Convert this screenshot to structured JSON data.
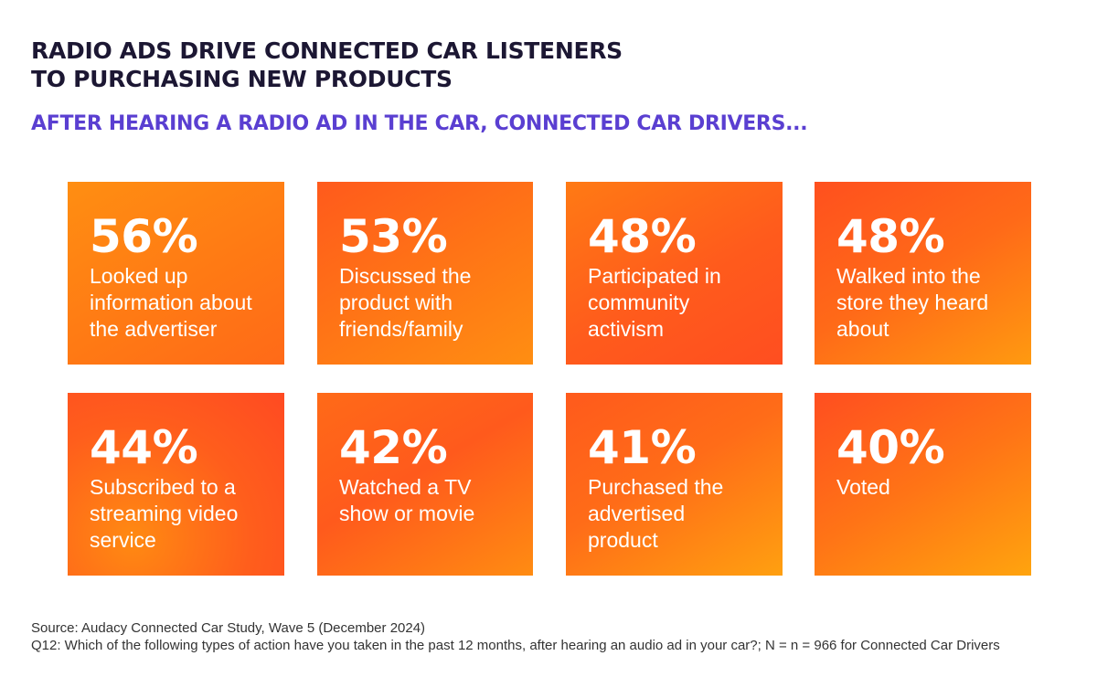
{
  "header": {
    "title_line1": "RADIO ADS DRIVE CONNECTED CAR LISTENERS",
    "title_line2": "TO PURCHASING NEW PRODUCTS",
    "subtitle": "AFTER HEARING A RADIO AD IN THE CAR, CONNECTED CAR DRIVERS..."
  },
  "stats": [
    {
      "percent": "56%",
      "label": "Looked up information about the advertiser"
    },
    {
      "percent": "53%",
      "label": "Discussed the product with friends/family"
    },
    {
      "percent": "48%",
      "label": "Participated in community activism"
    },
    {
      "percent": "48%",
      "label": "Walked into the store they heard about"
    },
    {
      "percent": "44%",
      "label": "Subscribed to a streaming video service"
    },
    {
      "percent": "42%",
      "label": "Watched a TV show or movie"
    },
    {
      "percent": "41%",
      "label": "Purchased the advertised product"
    },
    {
      "percent": "40%",
      "label": "Voted"
    }
  ],
  "footer": {
    "source": "Source: Audacy Connected Car Study, Wave 5 (December 2024)",
    "question": "Q12: Which of the following types of action have you taken in the past 12 months, after hearing an audio ad in your car?; N = n = 966 for Connected Car Drivers"
  },
  "colors": {
    "title": "#1c1733",
    "subtitle": "#5a3fd1",
    "card_orange": "#ff6a18"
  }
}
